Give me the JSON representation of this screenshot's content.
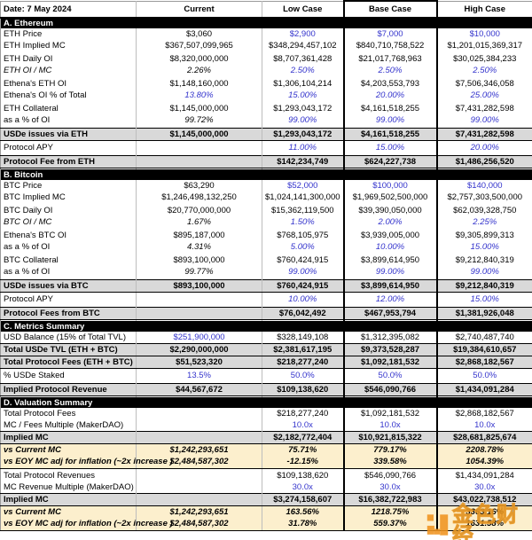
{
  "header": {
    "date_label": "Date: 7 May 2024",
    "columns": [
      "Current",
      "Low Case",
      "Base Case",
      "High Case"
    ]
  },
  "colors": {
    "assumption_blue": "#3333CC",
    "section_bg": "#000000",
    "subtotal_bg": "#D9D9D9",
    "highlight_bg": "#FCEFCD",
    "watermark_orange": "#F0941F"
  },
  "watermark": {
    "text": "金色财经"
  },
  "rows": [
    {
      "type": "section",
      "label": "A. Ethereum"
    },
    {
      "type": "data",
      "label": "ETH Price",
      "values": [
        "$3,060",
        "$2,900",
        "$7,000",
        "$10,000"
      ],
      "blue": [
        0,
        1,
        1,
        1
      ]
    },
    {
      "type": "data",
      "label": "ETH Implied MC",
      "values": [
        "$367,507,099,965",
        "$348,294,457,102",
        "$840,710,758,522",
        "$1,201,015,369,317"
      ]
    },
    {
      "type": "spacer"
    },
    {
      "type": "data",
      "label": "ETH Daily OI",
      "values": [
        "$8,320,000,000",
        "$8,707,361,428",
        "$21,017,768,963",
        "$30,025,384,233"
      ]
    },
    {
      "type": "data",
      "label": "ETH OI / MC",
      "values": [
        "2.26%",
        "2.50%",
        "2.50%",
        "2.50%"
      ],
      "blue": [
        0,
        1,
        1,
        1
      ],
      "italic": true
    },
    {
      "type": "spacer"
    },
    {
      "type": "data",
      "label": "Ethena's ETH OI",
      "values": [
        "$1,148,160,000",
        "$1,306,104,214",
        "$4,203,553,793",
        "$7,506,346,058"
      ]
    },
    {
      "type": "data",
      "label": "Ethena's OI % of Total",
      "values": [
        "13.80%",
        "15.00%",
        "20.00%",
        "25.00%"
      ],
      "blue": [
        1,
        1,
        1,
        1
      ],
      "vi": true
    },
    {
      "type": "spacer"
    },
    {
      "type": "data",
      "label": "ETH Collateral",
      "values": [
        "$1,145,000,000",
        "$1,293,043,172",
        "$4,161,518,255",
        "$7,431,282,598"
      ]
    },
    {
      "type": "data",
      "label": "as a % of OI",
      "values": [
        "99.72%",
        "99.00%",
        "99.00%",
        "99.00%"
      ],
      "blue": [
        0,
        1,
        1,
        1
      ],
      "vi": true
    },
    {
      "type": "spacer"
    },
    {
      "type": "subtotal",
      "label": "USDe issues via ETH",
      "values": [
        "$1,145,000,000",
        "$1,293,043,172",
        "$4,161,518,255",
        "$7,431,282,598"
      ]
    },
    {
      "type": "spacer"
    },
    {
      "type": "data",
      "label": "Protocol APY",
      "values": [
        "",
        "11.00%",
        "15.00%",
        "20.00%"
      ],
      "blue": [
        0,
        1,
        1,
        1
      ],
      "vi": true
    },
    {
      "type": "spacer"
    },
    {
      "type": "subtotal",
      "label": "Protocol Fee from ETH",
      "values": [
        "",
        "$142,234,749",
        "$624,227,738",
        "$1,486,256,520"
      ]
    },
    {
      "type": "spacer"
    },
    {
      "type": "section",
      "label": "B. Bitcoin"
    },
    {
      "type": "data",
      "label": "BTC Price",
      "values": [
        "$63,290",
        "$52,000",
        "$100,000",
        "$140,000"
      ],
      "blue": [
        0,
        1,
        1,
        1
      ]
    },
    {
      "type": "data",
      "label": "BTC Implied MC",
      "values": [
        "$1,246,498,132,250",
        "$1,024,141,300,000",
        "$1,969,502,500,000",
        "$2,757,303,500,000"
      ]
    },
    {
      "type": "spacer"
    },
    {
      "type": "data",
      "label": "BTC Daily OI",
      "values": [
        "$20,770,000,000",
        "$15,362,119,500",
        "$39,390,050,000",
        "$62,039,328,750"
      ]
    },
    {
      "type": "data",
      "label": "BTC OI / MC",
      "values": [
        "1.67%",
        "1.50%",
        "2.00%",
        "2.25%"
      ],
      "blue": [
        0,
        1,
        1,
        1
      ],
      "italic": true
    },
    {
      "type": "spacer"
    },
    {
      "type": "data",
      "label": "Ethena's BTC OI",
      "values": [
        "$895,187,000",
        "$768,105,975",
        "$3,939,005,000",
        "$9,305,899,313"
      ]
    },
    {
      "type": "data",
      "label": "as a % of OI",
      "values": [
        "4.31%",
        "5.00%",
        "10.00%",
        "15.00%"
      ],
      "blue": [
        0,
        1,
        1,
        1
      ],
      "vi": true
    },
    {
      "type": "spacer"
    },
    {
      "type": "data",
      "label": "BTC Collateral",
      "values": [
        "$893,100,000",
        "$760,424,915",
        "$3,899,614,950",
        "$9,212,840,319"
      ]
    },
    {
      "type": "data",
      "label": "as a % of OI",
      "values": [
        "99.77%",
        "99.00%",
        "99.00%",
        "99.00%"
      ],
      "blue": [
        0,
        1,
        1,
        1
      ],
      "vi": true
    },
    {
      "type": "spacer"
    },
    {
      "type": "subtotal",
      "label": "USDe issues via BTC",
      "values": [
        "$893,100,000",
        "$760,424,915",
        "$3,899,614,950",
        "$9,212,840,319"
      ]
    },
    {
      "type": "spacer"
    },
    {
      "type": "data",
      "label": "Protocol APY",
      "values": [
        "",
        "10.00%",
        "12.00%",
        "15.00%"
      ],
      "blue": [
        0,
        1,
        1,
        1
      ],
      "vi": true
    },
    {
      "type": "spacer"
    },
    {
      "type": "subtotal",
      "label": "Protocol Fees from BTC",
      "values": [
        "",
        "$76,042,492",
        "$467,953,794",
        "$1,381,926,048"
      ]
    },
    {
      "type": "spacer"
    },
    {
      "type": "section",
      "label": "C. Metrics Summary"
    },
    {
      "type": "data",
      "label": "USD Balance (15% of Total TVL)",
      "values": [
        "$251,900,000",
        "$328,149,108",
        "$1,312,395,082",
        "$2,740,487,740"
      ],
      "blue": [
        1,
        0,
        0,
        0
      ]
    },
    {
      "type": "subtotal",
      "label": "Total USDe TVL (ETH + BTC)",
      "values": [
        "$2,290,000,000",
        "$2,381,617,195",
        "$9,373,528,287",
        "$19,384,610,657"
      ]
    },
    {
      "type": "subtotal",
      "label": "Total Protocol Fees (ETH + BTC)",
      "values": [
        "$51,523,320",
        "$218,277,240",
        "$1,092,181,532",
        "$2,868,182,567"
      ]
    },
    {
      "type": "spacer"
    },
    {
      "type": "data",
      "label": "% USDe Staked",
      "values": [
        "13.5%",
        "50.0%",
        "50.0%",
        "50.0%"
      ],
      "blue": [
        1,
        1,
        1,
        1
      ]
    },
    {
      "type": "spacer"
    },
    {
      "type": "subtotal",
      "label": "Implied Protocol Revenue",
      "values": [
        "$44,567,672",
        "$109,138,620",
        "$546,090,766",
        "$1,434,091,284"
      ]
    },
    {
      "type": "spacer"
    },
    {
      "type": "section",
      "label": "D. Valuation Summary"
    },
    {
      "type": "data",
      "label": "Total Protocol Fees",
      "values": [
        "",
        "$218,277,240",
        "$1,092,181,532",
        "$2,868,182,567"
      ]
    },
    {
      "type": "data",
      "label": "MC / Fees Multiple (MakerDAO)",
      "values": [
        "",
        "10.0x",
        "10.0x",
        "10.0x"
      ],
      "blue": [
        0,
        1,
        1,
        1
      ]
    },
    {
      "type": "subtotal",
      "label": "Implied MC",
      "values": [
        "",
        "$2,182,772,404",
        "$10,921,815,322",
        "$28,681,825,674"
      ]
    },
    {
      "type": "highlight",
      "label": "vs Current MC",
      "values": [
        "$1,242,293,651",
        "75.71%",
        "779.17%",
        "2208.78%"
      ]
    },
    {
      "type": "highlight",
      "end": true,
      "label": "vs EOY MC adj for inflation (~2x increase )",
      "values": [
        "$2,484,587,302",
        "-12.15%",
        "339.58%",
        "1054.39%"
      ]
    },
    {
      "type": "spacer"
    },
    {
      "type": "data",
      "label": "Total Protocol Revenues",
      "values": [
        "",
        "$109,138,620",
        "$546,090,766",
        "$1,434,091,284"
      ]
    },
    {
      "type": "data",
      "label": "MC Revenue Multiple (MakerDAO)",
      "values": [
        "",
        "30.0x",
        "30.0x",
        "30.0x"
      ],
      "blue": [
        0,
        1,
        1,
        1
      ]
    },
    {
      "type": "subtotal",
      "label": "Implied MC",
      "values": [
        "",
        "$3,274,158,607",
        "$16,382,722,983",
        "$43,022,738,512"
      ]
    },
    {
      "type": "highlight",
      "label": "vs Current MC",
      "values": [
        "$1,242,293,651",
        "163.56%",
        "1218.75%",
        "3363.16%"
      ]
    },
    {
      "type": "highlight",
      "end": true,
      "label": "vs EOY MC adj for inflation (~2x increase )",
      "values": [
        "$2,484,587,302",
        "31.78%",
        "559.37%",
        "1631.58%"
      ]
    }
  ]
}
